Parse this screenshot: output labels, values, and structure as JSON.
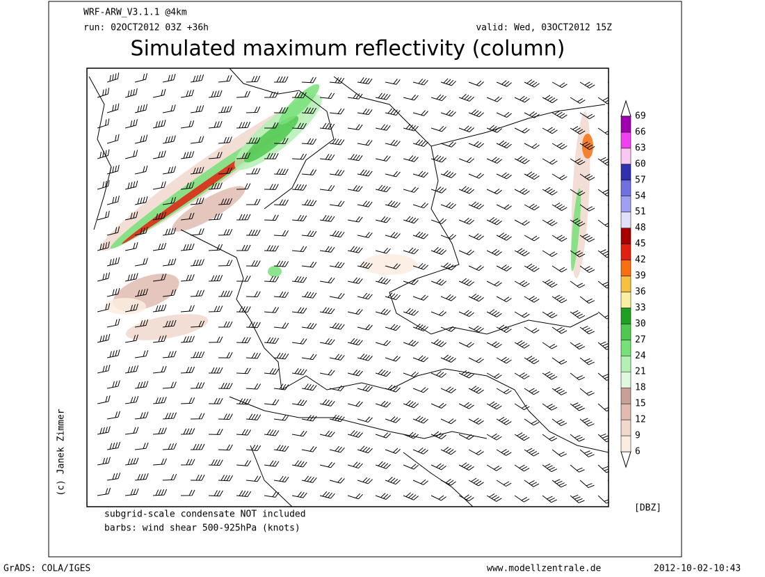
{
  "header": {
    "model": "WRF-ARW_V3.1.1 @4km",
    "run": "run: 02OCT2012 03Z +36h",
    "valid": "valid: Wed, 03OCT2012 15Z",
    "title": "Simulated maximum reflectivity (column)"
  },
  "credit": "(c) Janek Zimmer",
  "notes": [
    "subgrid-scale condensate NOT included",
    "barbs: wind shear 500-925hPa (knots)"
  ],
  "legend": {
    "unit": "[DBZ]",
    "ticks": [
      6,
      9,
      12,
      15,
      18,
      21,
      24,
      27,
      30,
      33,
      36,
      39,
      42,
      45,
      48,
      51,
      54,
      57,
      60,
      63,
      66,
      69
    ],
    "colors": [
      "#fbece0",
      "#f0d8cc",
      "#e0bcb0",
      "#c8a098",
      "#e0f8e0",
      "#b4f0b4",
      "#78e078",
      "#50c850",
      "#20a020",
      "#f8f0a0",
      "#f8c040",
      "#f87010",
      "#e02010",
      "#a80000",
      "#e0e0f8",
      "#a0a0f0",
      "#7070e0",
      "#3030b0",
      "#f8c8f0",
      "#f040f0",
      "#a000b0"
    ]
  },
  "footer": {
    "software": "GrADS: COLA/IGES",
    "website": "www.modellzentrale.de",
    "timestamp": "2012-10-02-10:43"
  }
}
